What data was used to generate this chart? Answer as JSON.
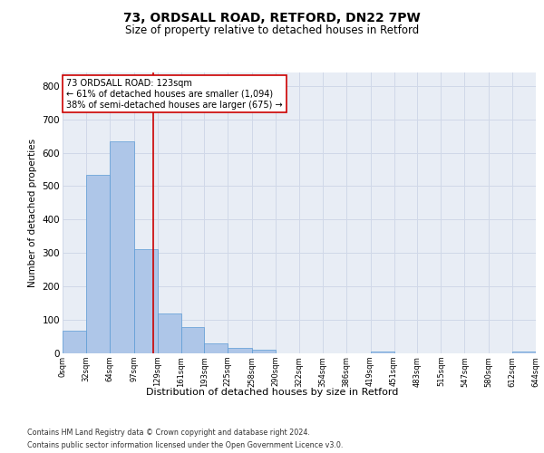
{
  "title1": "73, ORDSALL ROAD, RETFORD, DN22 7PW",
  "title2": "Size of property relative to detached houses in Retford",
  "xlabel": "Distribution of detached houses by size in Retford",
  "ylabel": "Number of detached properties",
  "footer1": "Contains HM Land Registry data © Crown copyright and database right 2024.",
  "footer2": "Contains public sector information licensed under the Open Government Licence v3.0.",
  "bin_edges": [
    0,
    32,
    64,
    97,
    129,
    161,
    193,
    225,
    258,
    290,
    322,
    354,
    386,
    419,
    451,
    483,
    515,
    547,
    580,
    612,
    644
  ],
  "bar_heights": [
    68,
    533,
    635,
    312,
    120,
    78,
    30,
    15,
    11,
    0,
    0,
    0,
    0,
    6,
    0,
    0,
    0,
    0,
    0,
    5
  ],
  "bar_color": "#aec6e8",
  "bar_edgecolor": "#5b9bd5",
  "grid_color": "#d0d8e8",
  "property_size": 123,
  "vline_color": "#cc0000",
  "annotation_line1": "73 ORDSALL ROAD: 123sqm",
  "annotation_line2": "← 61% of detached houses are smaller (1,094)",
  "annotation_line3": "38% of semi-detached houses are larger (675) →",
  "annotation_box_color": "#ffffff",
  "annotation_box_edgecolor": "#cc0000",
  "ylim": [
    0,
    840
  ],
  "yticks": [
    0,
    100,
    200,
    300,
    400,
    500,
    600,
    700,
    800
  ],
  "tick_labels": [
    "0sqm",
    "32sqm",
    "64sqm",
    "97sqm",
    "129sqm",
    "161sqm",
    "193sqm",
    "225sqm",
    "258sqm",
    "290sqm",
    "322sqm",
    "354sqm",
    "386sqm",
    "419sqm",
    "451sqm",
    "483sqm",
    "515sqm",
    "547sqm",
    "580sqm",
    "612sqm",
    "644sqm"
  ],
  "bg_color": "#e8edf5",
  "title_fontsize": 10,
  "subtitle_fontsize": 8.5,
  "ylabel_fontsize": 7.5,
  "ytick_fontsize": 7.5,
  "xtick_fontsize": 6,
  "xlabel_fontsize": 8,
  "footer_fontsize": 5.8,
  "annot_fontsize": 7
}
